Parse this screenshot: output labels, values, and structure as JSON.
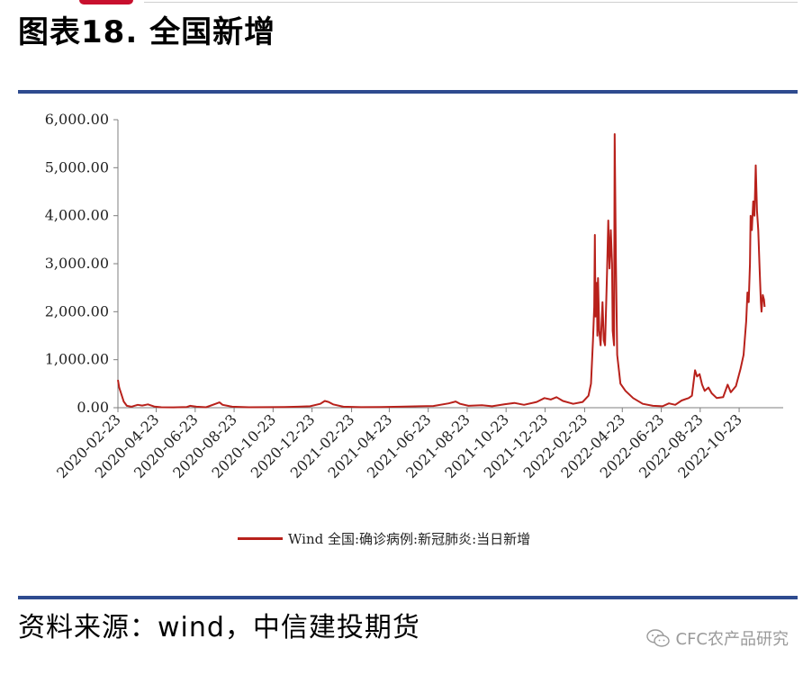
{
  "page": {
    "title": "图表18. 全国新增",
    "source": "资料来源：wind，中信建投期货",
    "watermark": "CFC农产品研究",
    "watermark_icon": "wechat-icon"
  },
  "chart_data": {
    "type": "line",
    "title": "",
    "xlabel": "",
    "ylabel": "",
    "ylim": [
      0,
      6000
    ],
    "yticks": [
      0,
      1000,
      2000,
      3000,
      4000,
      5000,
      6000
    ],
    "ytick_labels": [
      "0.00",
      "1,000.00",
      "2,000.00",
      "3,000.00",
      "4,000.00",
      "5,000.00",
      "6,000.00"
    ],
    "xlim": [
      "2020-02-23",
      "2022-12-31"
    ],
    "xtick_labels": [
      "2020-02-23",
      "2020-04-23",
      "2020-06-23",
      "2020-08-23",
      "2020-10-23",
      "2020-12-23",
      "2021-02-23",
      "2021-04-23",
      "2021-06-23",
      "2021-08-23",
      "2021-10-23",
      "2021-12-23",
      "2022-02-23",
      "2022-04-23",
      "2022-06-23",
      "2022-08-23",
      "2022-10-23"
    ],
    "grid": false,
    "legend_position": "bottom",
    "series": [
      {
        "name": "Wind 全国:确诊病例:新冠肺炎:当日新增",
        "color": "#b8211b",
        "points": [
          [
            "2020-02-23",
            580
          ],
          [
            "2020-02-25",
            420
          ],
          [
            "2020-02-28",
            300
          ],
          [
            "2020-03-03",
            130
          ],
          [
            "2020-03-08",
            40
          ],
          [
            "2020-03-15",
            20
          ],
          [
            "2020-03-25",
            60
          ],
          [
            "2020-04-01",
            45
          ],
          [
            "2020-04-10",
            70
          ],
          [
            "2020-04-20",
            25
          ],
          [
            "2020-05-01",
            10
          ],
          [
            "2020-05-20",
            8
          ],
          [
            "2020-06-10",
            15
          ],
          [
            "2020-06-15",
            40
          ],
          [
            "2020-06-25",
            20
          ],
          [
            "2020-07-10",
            10
          ],
          [
            "2020-07-25",
            80
          ],
          [
            "2020-07-31",
            110
          ],
          [
            "2020-08-05",
            60
          ],
          [
            "2020-08-20",
            20
          ],
          [
            "2020-09-15",
            10
          ],
          [
            "2020-10-15",
            12
          ],
          [
            "2020-11-10",
            15
          ],
          [
            "2020-12-01",
            20
          ],
          [
            "2020-12-20",
            30
          ],
          [
            "2021-01-05",
            80
          ],
          [
            "2021-01-12",
            140
          ],
          [
            "2021-01-18",
            120
          ],
          [
            "2021-01-25",
            70
          ],
          [
            "2021-02-10",
            20
          ],
          [
            "2021-03-10",
            12
          ],
          [
            "2021-04-10",
            15
          ],
          [
            "2021-05-10",
            20
          ],
          [
            "2021-06-10",
            30
          ],
          [
            "2021-07-01",
            35
          ],
          [
            "2021-07-25",
            90
          ],
          [
            "2021-08-05",
            130
          ],
          [
            "2021-08-12",
            80
          ],
          [
            "2021-08-25",
            40
          ],
          [
            "2021-09-15",
            50
          ],
          [
            "2021-10-01",
            30
          ],
          [
            "2021-10-20",
            70
          ],
          [
            "2021-11-05",
            100
          ],
          [
            "2021-11-20",
            60
          ],
          [
            "2021-12-10",
            120
          ],
          [
            "2021-12-22",
            200
          ],
          [
            "2022-01-01",
            170
          ],
          [
            "2022-01-10",
            220
          ],
          [
            "2022-01-20",
            140
          ],
          [
            "2022-02-05",
            80
          ],
          [
            "2022-02-20",
            120
          ],
          [
            "2022-03-01",
            250
          ],
          [
            "2022-03-05",
            500
          ],
          [
            "2022-03-08",
            1400
          ],
          [
            "2022-03-10",
            2100
          ],
          [
            "2022-03-11",
            3600
          ],
          [
            "2022-03-12",
            1900
          ],
          [
            "2022-03-14",
            2600
          ],
          [
            "2022-03-15",
            1500
          ],
          [
            "2022-03-16",
            2700
          ],
          [
            "2022-03-18",
            1600
          ],
          [
            "2022-03-20",
            1300
          ],
          [
            "2022-03-23",
            2200
          ],
          [
            "2022-03-25",
            1400
          ],
          [
            "2022-03-27",
            1300
          ],
          [
            "2022-03-30",
            2800
          ],
          [
            "2022-04-01",
            3900
          ],
          [
            "2022-04-03",
            2900
          ],
          [
            "2022-04-05",
            3700
          ],
          [
            "2022-04-07",
            3000
          ],
          [
            "2022-04-08",
            1600
          ],
          [
            "2022-04-10",
            1300
          ],
          [
            "2022-04-11",
            5700
          ],
          [
            "2022-04-13",
            3000
          ],
          [
            "2022-04-15",
            1100
          ],
          [
            "2022-04-20",
            500
          ],
          [
            "2022-04-28",
            350
          ],
          [
            "2022-05-10",
            200
          ],
          [
            "2022-05-25",
            80
          ],
          [
            "2022-06-10",
            40
          ],
          [
            "2022-06-25",
            30
          ],
          [
            "2022-07-05",
            90
          ],
          [
            "2022-07-15",
            60
          ],
          [
            "2022-07-25",
            150
          ],
          [
            "2022-08-05",
            200
          ],
          [
            "2022-08-10",
            250
          ],
          [
            "2022-08-15",
            780
          ],
          [
            "2022-08-18",
            650
          ],
          [
            "2022-08-22",
            700
          ],
          [
            "2022-08-26",
            480
          ],
          [
            "2022-08-30",
            350
          ],
          [
            "2022-09-05",
            420
          ],
          [
            "2022-09-10",
            300
          ],
          [
            "2022-09-18",
            200
          ],
          [
            "2022-09-28",
            220
          ],
          [
            "2022-10-05",
            480
          ],
          [
            "2022-10-10",
            320
          ],
          [
            "2022-10-18",
            450
          ],
          [
            "2022-10-25",
            800
          ],
          [
            "2022-10-30",
            1100
          ],
          [
            "2022-11-03",
            1800
          ],
          [
            "2022-11-05",
            2400
          ],
          [
            "2022-11-07",
            2200
          ],
          [
            "2022-11-09",
            3000
          ],
          [
            "2022-11-10",
            4000
          ],
          [
            "2022-11-12",
            3700
          ],
          [
            "2022-11-14",
            4300
          ],
          [
            "2022-11-16",
            4000
          ],
          [
            "2022-11-18",
            5050
          ],
          [
            "2022-11-20",
            4100
          ],
          [
            "2022-11-22",
            3700
          ],
          [
            "2022-11-24",
            2900
          ],
          [
            "2022-11-26",
            2200
          ],
          [
            "2022-11-27",
            2000
          ],
          [
            "2022-11-29",
            2350
          ],
          [
            "2022-12-01",
            2250
          ],
          [
            "2022-12-02",
            2100
          ]
        ]
      }
    ]
  }
}
